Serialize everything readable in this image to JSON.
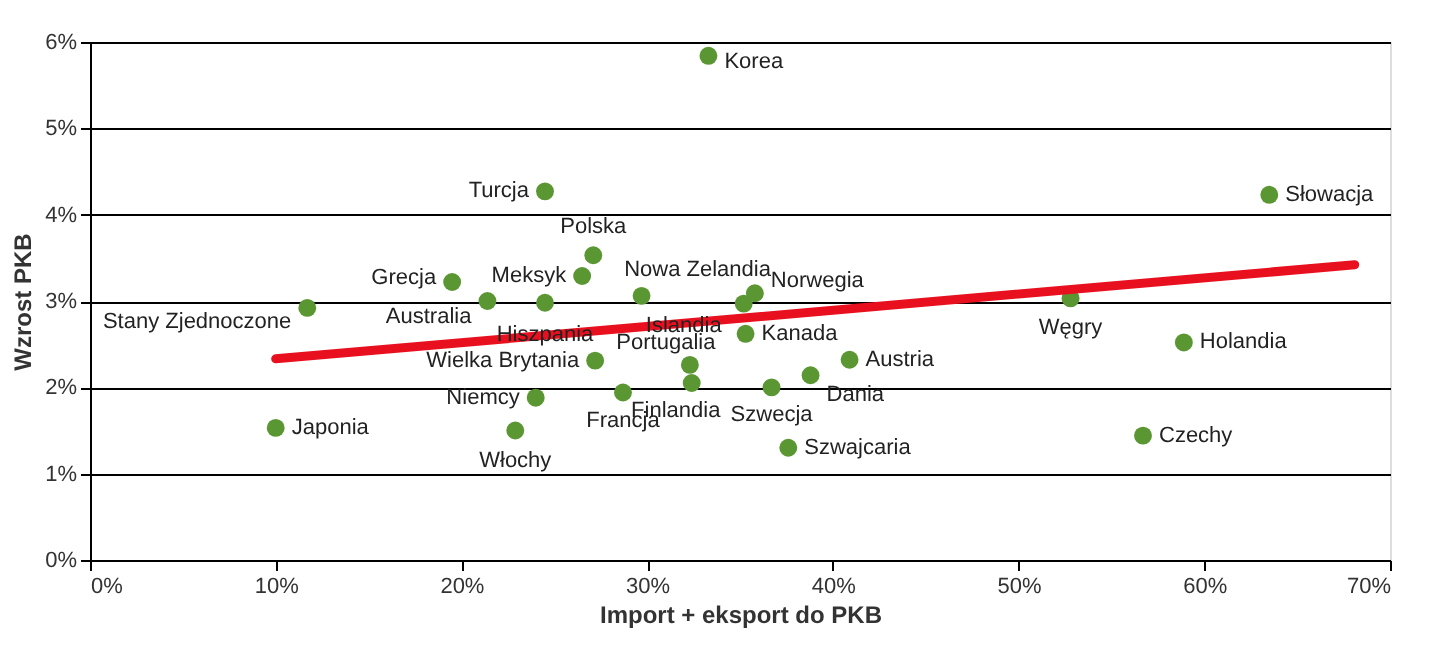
{
  "chart_data": {
    "type": "scatter",
    "xlabel": "Import + eksport do PKB",
    "ylabel": "Wzrost PKB",
    "xlim": [
      0,
      70
    ],
    "ylim": [
      0,
      6
    ],
    "xticks": [
      {
        "value": 0,
        "label": "0%"
      },
      {
        "value": 10,
        "label": "10%"
      },
      {
        "value": 20,
        "label": "20%"
      },
      {
        "value": 30,
        "label": "30%"
      },
      {
        "value": 40,
        "label": "40%"
      },
      {
        "value": 50,
        "label": "50%"
      },
      {
        "value": 60,
        "label": "60%"
      },
      {
        "value": 70,
        "label": "70%"
      }
    ],
    "yticks": [
      {
        "value": 0,
        "label": "0%"
      },
      {
        "value": 1,
        "label": "1%"
      },
      {
        "value": 2,
        "label": "2%"
      },
      {
        "value": 3,
        "label": "3%"
      },
      {
        "value": 4,
        "label": "4%"
      },
      {
        "value": 5,
        "label": "5%"
      },
      {
        "value": 6,
        "label": "6%"
      }
    ],
    "grid": "y",
    "series": [
      {
        "marker": "circle",
        "color": "#5a9632",
        "x": [
          33.3,
          24.5,
          27.1,
          26.5,
          19.5,
          21.4,
          24.5,
          11.7,
          29.7,
          35.2,
          35.8,
          35.3,
          27.2,
          32.3,
          32.4,
          28.7,
          24.0,
          10.0,
          22.9,
          36.7,
          38.8,
          40.9,
          37.6,
          52.8,
          58.9,
          56.7,
          63.5
        ],
        "values": [
          5.84,
          4.27,
          3.53,
          3.29,
          3.22,
          3.0,
          2.98,
          2.92,
          3.06,
          2.97,
          3.09,
          2.62,
          2.31,
          2.26,
          2.05,
          1.94,
          1.88,
          1.53,
          1.5,
          2.0,
          2.14,
          2.32,
          1.3,
          3.03,
          2.52,
          1.44,
          4.23
        ]
      },
      {
        "type": "line",
        "color": "#e8101e",
        "x": [
          10.0,
          68.1
        ],
        "values": [
          2.33,
          3.42
        ]
      }
    ],
    "annotations": [
      {
        "text": "Korea",
        "x": 33.3,
        "y": 5.84
      },
      {
        "text": "Turcja",
        "x": 24.5,
        "y": 4.27
      },
      {
        "text": "Polska",
        "x": 27.1,
        "y": 3.53
      },
      {
        "text": "Meksyk",
        "x": 26.5,
        "y": 3.29
      },
      {
        "text": "Grecja",
        "x": 19.5,
        "y": 3.22
      },
      {
        "text": "Australia",
        "x": 21.4,
        "y": 3.0
      },
      {
        "text": "Hiszpania",
        "x": 24.5,
        "y": 2.98
      },
      {
        "text": "Stany Zjednoczone",
        "x": 11.7,
        "y": 2.92
      },
      {
        "text": "Nowa Zelandia",
        "x": 29.7,
        "y": 3.06
      },
      {
        "text": "Islandia",
        "x": 35.2,
        "y": 2.97
      },
      {
        "text": "Norwegia",
        "x": 35.8,
        "y": 3.09
      },
      {
        "text": "Kanada",
        "x": 35.3,
        "y": 2.62
      },
      {
        "text": "Wielka Brytania",
        "x": 27.2,
        "y": 2.31
      },
      {
        "text": "Portugalia",
        "x": 32.3,
        "y": 2.26
      },
      {
        "text": "Finlandia",
        "x": 32.4,
        "y": 2.05
      },
      {
        "text": "Francja",
        "x": 28.7,
        "y": 1.94
      },
      {
        "text": "Niemcy",
        "x": 24.0,
        "y": 1.88
      },
      {
        "text": "Japonia",
        "x": 10.0,
        "y": 1.53
      },
      {
        "text": "Włochy",
        "x": 22.9,
        "y": 1.5
      },
      {
        "text": "Szwecja",
        "x": 36.7,
        "y": 2.0
      },
      {
        "text": "Dania",
        "x": 38.8,
        "y": 2.14
      },
      {
        "text": "Austria",
        "x": 40.9,
        "y": 2.32
      },
      {
        "text": "Szwajcaria",
        "x": 37.6,
        "y": 1.3
      },
      {
        "text": "Węgry",
        "x": 52.8,
        "y": 3.03
      },
      {
        "text": "Holandia",
        "x": 58.9,
        "y": 2.52
      },
      {
        "text": "Czechy",
        "x": 56.7,
        "y": 1.44
      },
      {
        "text": "Słowacja",
        "x": 63.5,
        "y": 4.23
      }
    ]
  }
}
